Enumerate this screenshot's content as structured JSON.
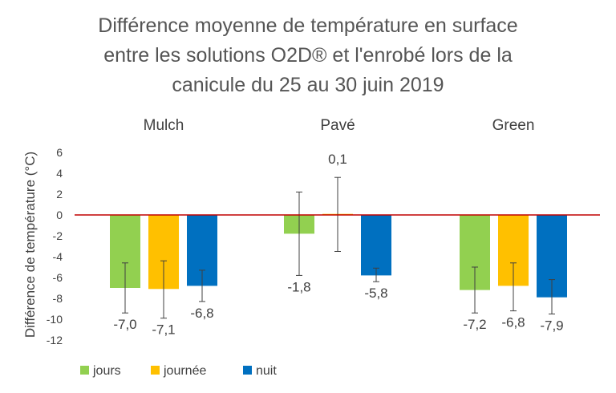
{
  "chart_data": {
    "type": "bar",
    "title_lines": [
      "Différence moyenne de température en surface",
      "entre les solutions O2D® et l'enrobé lors de la",
      "canicule du 25 au 30 juin 2019"
    ],
    "ylabel": "Différence de température (°C)",
    "xlabel": "",
    "ylim": [
      -12,
      6
    ],
    "yticks": [
      6,
      4,
      2,
      0,
      -2,
      -4,
      -6,
      -8,
      -10,
      -12
    ],
    "categories": [
      "Mulch",
      "Pavé",
      "Green"
    ],
    "grid": false,
    "legend_position": "bottom-left",
    "zero_line_color": "#c00000",
    "series": [
      {
        "name": "jours",
        "color": "#92d050",
        "values": [
          -7.0,
          -1.8,
          -7.2
        ],
        "labels": [
          "-7,0",
          "-1,8",
          "-7,2"
        ],
        "error": [
          [
            -9.4,
            -4.6
          ],
          [
            -5.8,
            2.2
          ],
          [
            -9.4,
            -5.0
          ]
        ]
      },
      {
        "name": "journée",
        "color": "#ffc000",
        "values": [
          -7.1,
          0.1,
          -6.8
        ],
        "labels": [
          "-7,1",
          "0,1",
          "-6,8"
        ],
        "error": [
          [
            -9.9,
            -4.4
          ],
          [
            -3.5,
            3.6
          ],
          [
            -9.2,
            -4.6
          ]
        ]
      },
      {
        "name": "nuit",
        "color": "#0070c0",
        "values": [
          -6.8,
          -5.8,
          -7.9
        ],
        "labels": [
          "-6,8",
          "-5,8",
          "-7,9"
        ],
        "error": [
          [
            -8.3,
            -5.3
          ],
          [
            -6.4,
            -5.1
          ],
          [
            -9.5,
            -6.2
          ]
        ]
      }
    ]
  }
}
